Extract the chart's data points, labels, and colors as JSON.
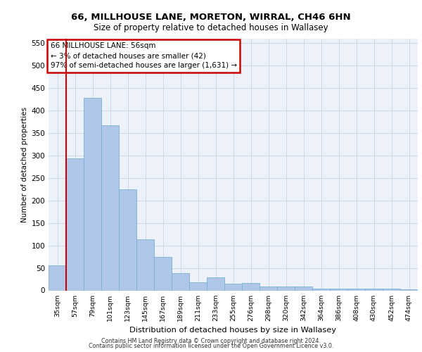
{
  "title1": "66, MILLHOUSE LANE, MORETON, WIRRAL, CH46 6HN",
  "title2": "Size of property relative to detached houses in Wallasey",
  "xlabel": "Distribution of detached houses by size in Wallasey",
  "ylabel": "Number of detached properties",
  "categories": [
    "35sqm",
    "57sqm",
    "79sqm",
    "101sqm",
    "123sqm",
    "145sqm",
    "167sqm",
    "189sqm",
    "211sqm",
    "233sqm",
    "255sqm",
    "276sqm",
    "298sqm",
    "320sqm",
    "342sqm",
    "364sqm",
    "386sqm",
    "408sqm",
    "430sqm",
    "452sqm",
    "474sqm"
  ],
  "values": [
    55,
    293,
    428,
    368,
    225,
    113,
    75,
    38,
    18,
    29,
    15,
    16,
    8,
    8,
    8,
    4,
    4,
    4,
    4,
    4,
    2
  ],
  "bar_color": "#aec6e8",
  "bar_edge_color": "#7aafd4",
  "highlight_color": "#cc0000",
  "annotation_text": "66 MILLHOUSE LANE: 56sqm\n← 3% of detached houses are smaller (42)\n97% of semi-detached houses are larger (1,631) →",
  "annotation_box_color": "#ffffff",
  "annotation_box_edge_color": "#cc0000",
  "ylim": [
    0,
    560
  ],
  "yticks": [
    0,
    50,
    100,
    150,
    200,
    250,
    300,
    350,
    400,
    450,
    500,
    550
  ],
  "grid_color": "#cdd8ea",
  "background_color": "#edf1f9",
  "footer1": "Contains HM Land Registry data © Crown copyright and database right 2024.",
  "footer2": "Contains public sector information licensed under the Open Government Licence v3.0."
}
